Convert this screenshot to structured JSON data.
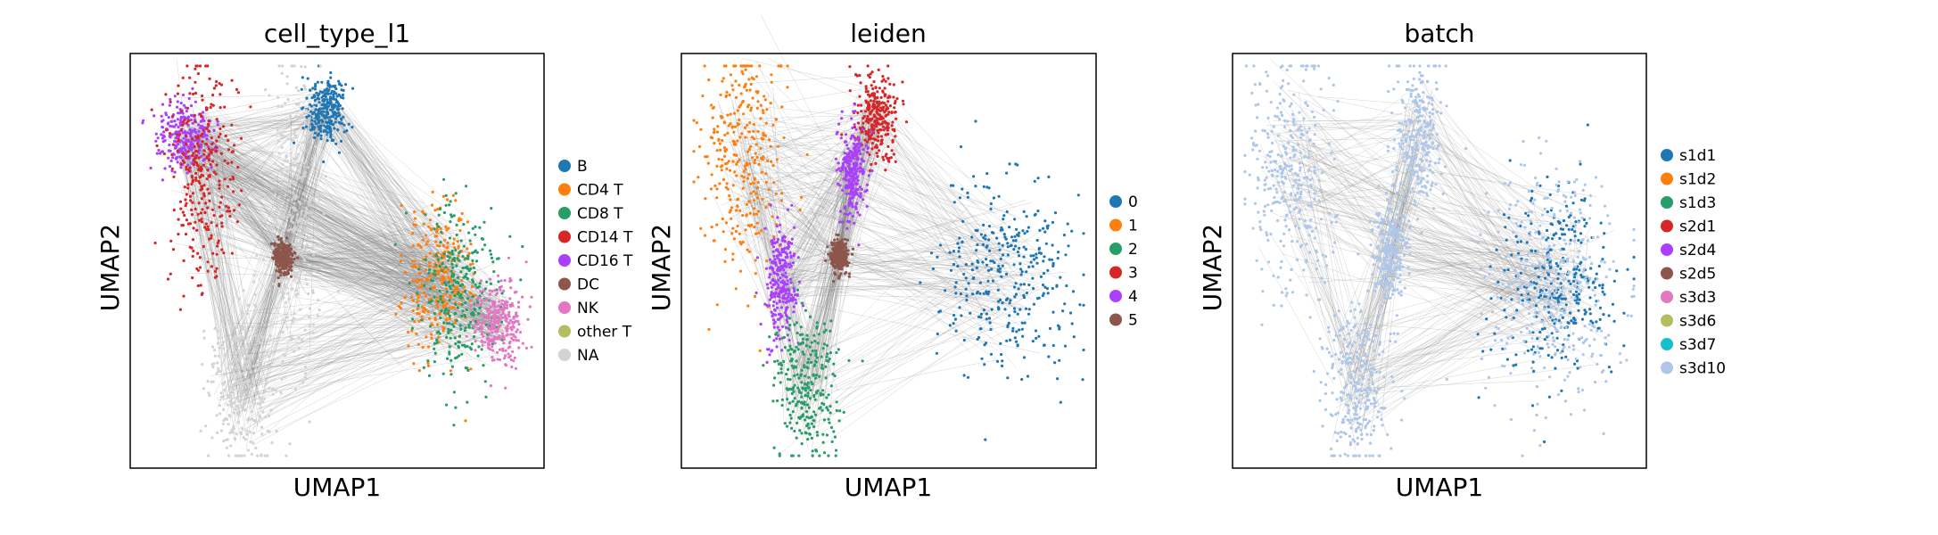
{
  "chart_data": [
    {
      "type": "scatter",
      "title": "cell_type_l1",
      "xlabel": "UMAP1",
      "ylabel": "UMAP2",
      "edges_color": "#808080",
      "legend_position": "right",
      "legend": [
        {
          "name": "B",
          "color": "#1f77b4"
        },
        {
          "name": "CD4 T",
          "color": "#ff7f0e"
        },
        {
          "name": "CD8 T",
          "color": "#279e68"
        },
        {
          "name": "CD14 T",
          "color": "#d62728"
        },
        {
          "name": "CD16 T",
          "color": "#aa40fc"
        },
        {
          "name": "DC",
          "color": "#8c564b"
        },
        {
          "name": "NK",
          "color": "#e377c2"
        },
        {
          "name": "other T",
          "color": "#b5bd61"
        },
        {
          "name": "NA",
          "color": "#d3d3d3"
        }
      ],
      "clusters": [
        {
          "category": "CD16 T",
          "x": 0.13,
          "y": 0.8,
          "spread": [
            0.035,
            0.04
          ]
        },
        {
          "category": "CD14 T",
          "x": 0.17,
          "y": 0.7,
          "spread": [
            0.04,
            0.14
          ]
        },
        {
          "category": "B",
          "x": 0.47,
          "y": 0.86,
          "spread": [
            0.025,
            0.04
          ]
        },
        {
          "category": "NA",
          "x": 0.4,
          "y": 0.6,
          "spread": [
            0.03,
            0.18
          ]
        },
        {
          "category": "DC",
          "x": 0.37,
          "y": 0.51,
          "spread": [
            0.012,
            0.02
          ]
        },
        {
          "category": "CD4 T",
          "x": 0.74,
          "y": 0.46,
          "spread": [
            0.04,
            0.09
          ]
        },
        {
          "category": "CD8 T",
          "x": 0.8,
          "y": 0.42,
          "spread": [
            0.05,
            0.1
          ]
        },
        {
          "category": "NK",
          "x": 0.89,
          "y": 0.35,
          "spread": [
            0.03,
            0.05
          ]
        },
        {
          "category": "NA",
          "x": 0.27,
          "y": 0.2,
          "spread": [
            0.04,
            0.1
          ]
        }
      ]
    },
    {
      "type": "scatter",
      "title": "leiden",
      "xlabel": "UMAP1",
      "ylabel": "UMAP2",
      "edges_color": "#808080",
      "legend_position": "right",
      "legend": [
        {
          "name": "0",
          "color": "#1f77b4"
        },
        {
          "name": "1",
          "color": "#ff7f0e"
        },
        {
          "name": "2",
          "color": "#279e68"
        },
        {
          "name": "3",
          "color": "#d62728"
        },
        {
          "name": "4",
          "color": "#aa40fc"
        },
        {
          "name": "5",
          "color": "#8c564b"
        }
      ],
      "clusters": [
        {
          "category": "1",
          "x": 0.15,
          "y": 0.75,
          "spread": [
            0.05,
            0.15
          ]
        },
        {
          "category": "3",
          "x": 0.47,
          "y": 0.85,
          "spread": [
            0.025,
            0.05
          ]
        },
        {
          "category": "4",
          "x": 0.41,
          "y": 0.72,
          "spread": [
            0.015,
            0.06
          ]
        },
        {
          "category": "4",
          "x": 0.24,
          "y": 0.45,
          "spread": [
            0.018,
            0.07
          ]
        },
        {
          "category": "5",
          "x": 0.38,
          "y": 0.51,
          "spread": [
            0.012,
            0.02
          ]
        },
        {
          "category": "0",
          "x": 0.79,
          "y": 0.46,
          "spread": [
            0.08,
            0.12
          ]
        },
        {
          "category": "2",
          "x": 0.3,
          "y": 0.19,
          "spread": [
            0.04,
            0.09
          ]
        }
      ]
    },
    {
      "type": "scatter",
      "title": "batch",
      "xlabel": "UMAP1",
      "ylabel": "UMAP2",
      "edges_color": "#808080",
      "legend_position": "right",
      "legend": [
        {
          "name": "s1d1",
          "color": "#1f77b4"
        },
        {
          "name": "s1d2",
          "color": "#ff7f0e"
        },
        {
          "name": "s1d3",
          "color": "#279e68"
        },
        {
          "name": "s2d1",
          "color": "#d62728"
        },
        {
          "name": "s2d4",
          "color": "#aa40fc"
        },
        {
          "name": "s2d5",
          "color": "#8c564b"
        },
        {
          "name": "s3d3",
          "color": "#e377c2"
        },
        {
          "name": "s3d6",
          "color": "#b5bd61"
        },
        {
          "name": "s3d7",
          "color": "#17becf"
        },
        {
          "name": "s3d10",
          "color": "#aec7e8"
        }
      ],
      "clusters": [
        {
          "category": "s3d10",
          "x": 0.14,
          "y": 0.72,
          "spread": [
            0.05,
            0.15
          ]
        },
        {
          "category": "s3d10",
          "x": 0.45,
          "y": 0.8,
          "spread": [
            0.03,
            0.1
          ]
        },
        {
          "category": "s3d10",
          "x": 0.38,
          "y": 0.52,
          "spread": [
            0.02,
            0.06
          ]
        },
        {
          "category": "s1d1",
          "x": 0.78,
          "y": 0.44,
          "spread": [
            0.07,
            0.12
          ]
        },
        {
          "category": "s3d10",
          "x": 0.78,
          "y": 0.44,
          "spread": [
            0.08,
            0.13
          ]
        },
        {
          "category": "s3d10",
          "x": 0.3,
          "y": 0.2,
          "spread": [
            0.04,
            0.1
          ]
        }
      ]
    }
  ]
}
